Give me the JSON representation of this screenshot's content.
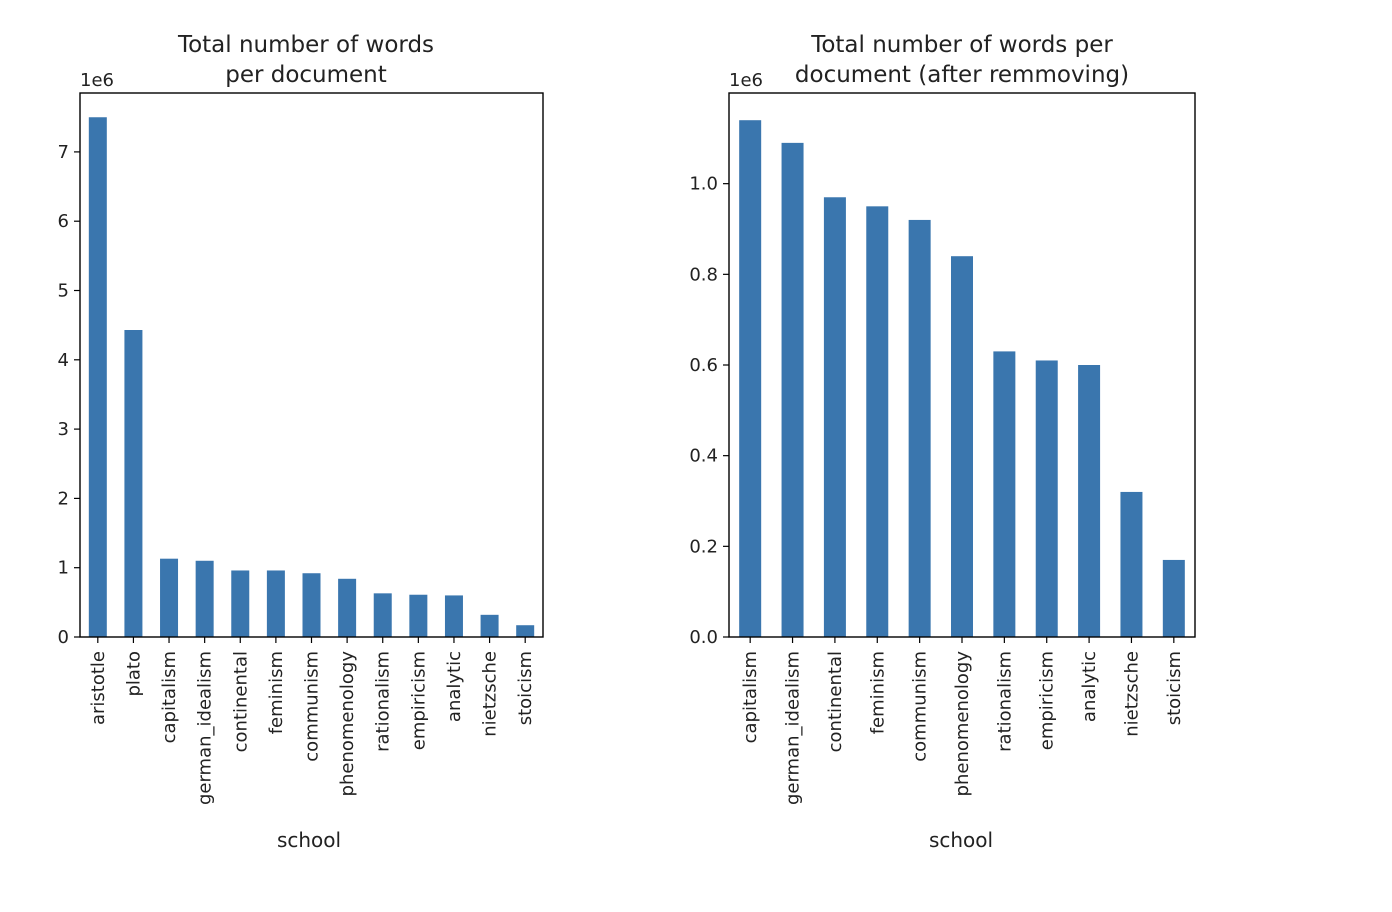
{
  "chart_data": [
    {
      "type": "bar",
      "title_lines": [
        "Total number of words",
        "per document"
      ],
      "offset_label": "1e6",
      "xlabel": "school",
      "ylabel": "",
      "ylim": [
        0,
        7.85
      ],
      "yticks": [
        0,
        1,
        2,
        3,
        4,
        5,
        6,
        7
      ],
      "ytick_labels": [
        "0",
        "1",
        "2",
        "3",
        "4",
        "5",
        "6",
        "7"
      ],
      "categories": [
        "aristotle",
        "plato",
        "capitalism",
        "german_idealism",
        "continental",
        "feminism",
        "communism",
        "phenomenology",
        "rationalism",
        "empiricism",
        "analytic",
        "nietzsche",
        "stoicism"
      ],
      "values": [
        7.5,
        4.43,
        1.13,
        1.1,
        0.96,
        0.96,
        0.92,
        0.84,
        0.63,
        0.61,
        0.6,
        0.32,
        0.17
      ],
      "bar_color": "#3a76ae",
      "grid": false,
      "legend": "none"
    },
    {
      "type": "bar",
      "title_lines": [
        "Total number of words per",
        "document (after remmoving)"
      ],
      "offset_label": "1e6",
      "xlabel": "school",
      "ylabel": "",
      "ylim": [
        0,
        1.2
      ],
      "yticks": [
        0,
        0.2,
        0.4,
        0.6,
        0.8,
        1.0
      ],
      "ytick_labels": [
        "0.0",
        "0.2",
        "0.4",
        "0.6",
        "0.8",
        "1.0"
      ],
      "categories": [
        "capitalism",
        "german_idealism",
        "continental",
        "feminism",
        "communism",
        "phenomenology",
        "rationalism",
        "empiricism",
        "analytic",
        "nietzsche",
        "stoicism"
      ],
      "values": [
        1.14,
        1.09,
        0.97,
        0.95,
        0.92,
        0.84,
        0.63,
        0.61,
        0.6,
        0.32,
        0.17
      ],
      "bar_color": "#3a76ae",
      "grid": false,
      "legend": "none"
    }
  ]
}
